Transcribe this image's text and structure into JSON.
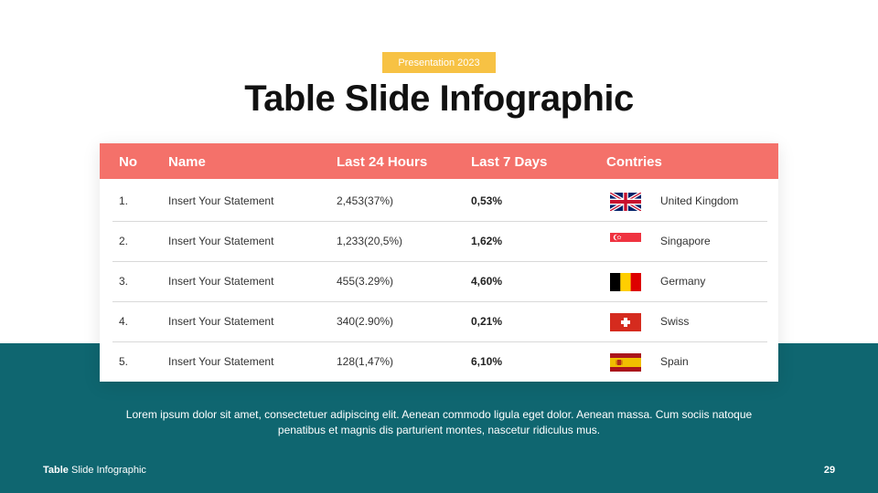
{
  "badge": "Presentation 2023",
  "title": "Table Slide Infographic",
  "table": {
    "headers": {
      "no": "No",
      "name": "Name",
      "last24": "Last 24 Hours",
      "last7": "Last 7 Days",
      "countries": "Contries"
    },
    "rows": [
      {
        "no": "1.",
        "name": "Insert Your Statement",
        "last24": "2,453(37%)",
        "last7": "0,53%",
        "flag": "united-kingdom-flag-icon",
        "country": "United Kingdom"
      },
      {
        "no": "2.",
        "name": "Insert Your Statement",
        "last24": "1,233(20,5%)",
        "last7": "1,62%",
        "flag": "singapore-flag-icon",
        "country": "Singapore"
      },
      {
        "no": "3.",
        "name": "Insert Your Statement",
        "last24": "455(3.29%)",
        "last7": "4,60%",
        "flag": "germany-flag-icon",
        "country": "Germany"
      },
      {
        "no": "4.",
        "name": "Insert Your Statement",
        "last24": "340(2.90%)",
        "last7": "0,21%",
        "flag": "swiss-flag-icon",
        "country": "Swiss"
      },
      {
        "no": "5.",
        "name": "Insert Your Statement",
        "last24": "128(1,47%)",
        "last7": "6,10%",
        "flag": "spain-flag-icon",
        "country": "Spain"
      }
    ]
  },
  "caption_line1": "Lorem  ipsum dolor sit amet, consectetuer adipiscing elit. Aenean commodo ligula eget dolor. Aenean massa. Cum sociis natoque",
  "caption_line2": "penatibus et magnis dis parturient montes, nascetur ridiculus mus.",
  "footer": {
    "bold": "Table",
    "rest": " Slide Infographic",
    "page": "29"
  },
  "colors": {
    "header": "#f4716a",
    "band": "#0f6670",
    "badge": "#f7c244"
  }
}
